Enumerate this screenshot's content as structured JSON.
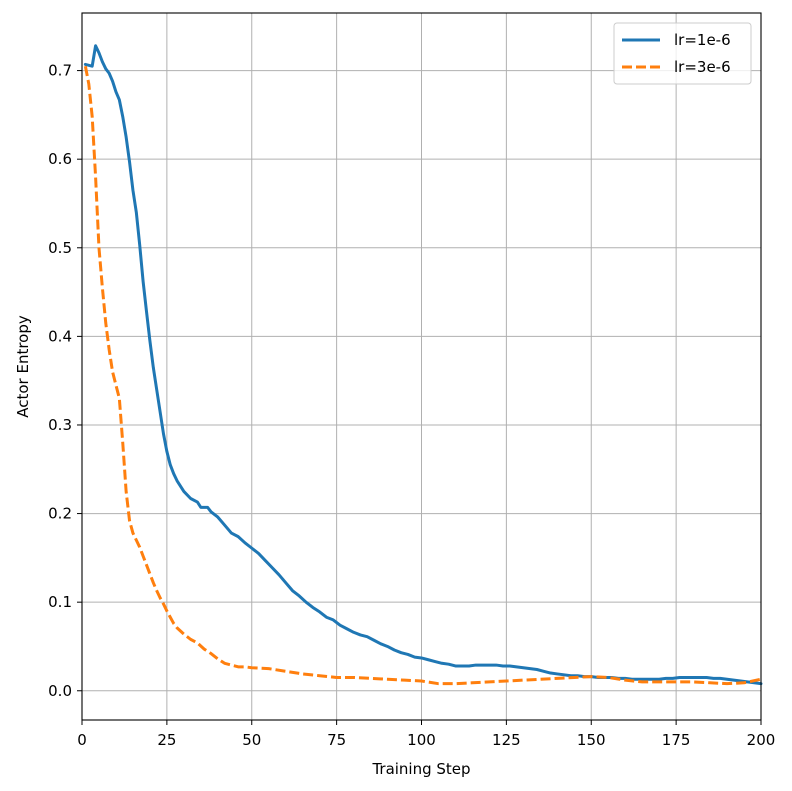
{
  "chart_data": {
    "type": "line",
    "title": "",
    "xlabel": "Training Step",
    "ylabel": "Actor Entropy",
    "xlim": [
      0,
      200
    ],
    "ylim": [
      -0.033,
      0.765
    ],
    "xticks": [
      0,
      25,
      50,
      75,
      100,
      125,
      150,
      175,
      200
    ],
    "yticks": [
      0.0,
      0.1,
      0.2,
      0.3,
      0.4,
      0.5,
      0.6,
      0.7
    ],
    "xtick_labels": [
      "0",
      "25",
      "50",
      "75",
      "100",
      "125",
      "150",
      "175",
      "200"
    ],
    "ytick_labels": [
      "0.0",
      "0.1",
      "0.2",
      "0.3",
      "0.4",
      "0.5",
      "0.6",
      "0.7"
    ],
    "grid": true,
    "legend_position": "top-right",
    "series": [
      {
        "name": "lr=1e-6",
        "color": "#1f77b4",
        "style": "solid",
        "x": [
          1,
          3,
          4,
          5,
          6,
          7,
          8,
          9,
          10,
          11,
          12,
          13,
          14,
          15,
          16,
          17,
          18,
          19,
          20,
          21,
          22,
          23,
          24,
          25,
          26,
          27,
          28,
          30,
          32,
          34,
          35,
          37,
          38,
          40,
          42,
          44,
          46,
          48,
          50,
          52,
          54,
          56,
          58,
          60,
          62,
          64,
          66,
          68,
          70,
          72,
          74,
          76,
          78,
          80,
          82,
          84,
          86,
          88,
          90,
          92,
          94,
          96,
          98,
          100,
          102,
          104,
          106,
          108,
          110,
          112,
          114,
          116,
          118,
          120,
          122,
          124,
          126,
          128,
          130,
          132,
          134,
          136,
          138,
          140,
          142,
          144,
          146,
          148,
          150,
          152,
          154,
          156,
          158,
          160,
          162,
          164,
          166,
          168,
          170,
          172,
          174,
          176,
          178,
          180,
          182,
          184,
          186,
          188,
          190,
          192,
          194,
          196,
          198,
          200
        ],
        "values": [
          0.707,
          0.705,
          0.728,
          0.72,
          0.71,
          0.702,
          0.697,
          0.688,
          0.676,
          0.667,
          0.648,
          0.625,
          0.597,
          0.565,
          0.54,
          0.503,
          0.462,
          0.428,
          0.395,
          0.365,
          0.34,
          0.315,
          0.29,
          0.27,
          0.255,
          0.245,
          0.237,
          0.225,
          0.217,
          0.213,
          0.207,
          0.207,
          0.202,
          0.196,
          0.187,
          0.178,
          0.174,
          0.167,
          0.161,
          0.155,
          0.147,
          0.139,
          0.131,
          0.122,
          0.113,
          0.107,
          0.1,
          0.094,
          0.089,
          0.083,
          0.08,
          0.074,
          0.07,
          0.066,
          0.063,
          0.061,
          0.057,
          0.053,
          0.05,
          0.046,
          0.043,
          0.041,
          0.038,
          0.037,
          0.035,
          0.033,
          0.031,
          0.03,
          0.028,
          0.028,
          0.028,
          0.029,
          0.029,
          0.029,
          0.029,
          0.028,
          0.028,
          0.027,
          0.026,
          0.025,
          0.024,
          0.022,
          0.02,
          0.019,
          0.018,
          0.017,
          0.017,
          0.016,
          0.016,
          0.015,
          0.015,
          0.015,
          0.014,
          0.014,
          0.013,
          0.013,
          0.013,
          0.013,
          0.013,
          0.014,
          0.014,
          0.015,
          0.015,
          0.015,
          0.015,
          0.015,
          0.014,
          0.014,
          0.013,
          0.012,
          0.011,
          0.01,
          0.009,
          0.008
        ]
      },
      {
        "name": "lr=3e-6",
        "color": "#ff7f0e",
        "style": "dashed",
        "x": [
          1,
          2,
          3,
          4,
          5,
          6,
          7,
          8,
          9,
          10,
          11,
          12,
          13,
          14,
          15,
          16,
          17,
          18,
          19,
          20,
          21,
          22,
          23,
          24,
          25,
          26,
          27,
          28,
          30,
          32,
          34,
          36,
          38,
          40,
          42,
          44,
          46,
          48,
          50,
          55,
          60,
          65,
          70,
          75,
          80,
          85,
          90,
          95,
          100,
          105,
          110,
          115,
          120,
          125,
          130,
          135,
          140,
          145,
          150,
          155,
          160,
          165,
          170,
          175,
          180,
          185,
          190,
          195,
          200
        ],
        "values": [
          0.705,
          0.685,
          0.648,
          0.58,
          0.5,
          0.455,
          0.415,
          0.385,
          0.36,
          0.345,
          0.33,
          0.28,
          0.225,
          0.192,
          0.178,
          0.17,
          0.162,
          0.152,
          0.142,
          0.132,
          0.122,
          0.113,
          0.105,
          0.098,
          0.09,
          0.083,
          0.076,
          0.071,
          0.064,
          0.058,
          0.054,
          0.047,
          0.042,
          0.036,
          0.031,
          0.029,
          0.027,
          0.027,
          0.026,
          0.025,
          0.022,
          0.019,
          0.017,
          0.015,
          0.015,
          0.014,
          0.013,
          0.012,
          0.011,
          0.008,
          0.008,
          0.009,
          0.01,
          0.011,
          0.012,
          0.013,
          0.014,
          0.015,
          0.016,
          0.015,
          0.012,
          0.01,
          0.01,
          0.01,
          0.01,
          0.009,
          0.008,
          0.009,
          0.013
        ]
      }
    ]
  }
}
